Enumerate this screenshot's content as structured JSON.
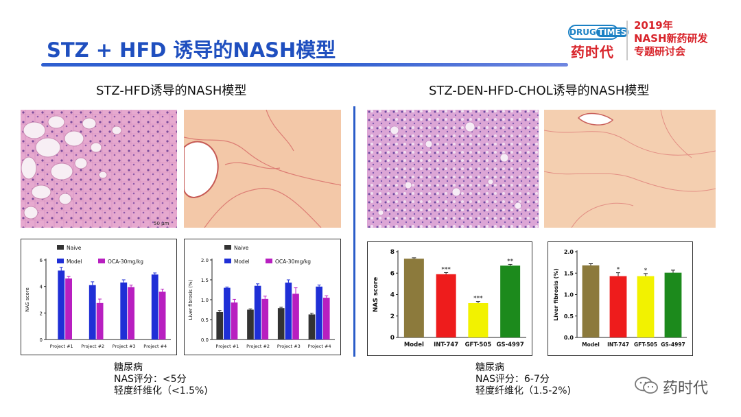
{
  "slide": {
    "title": "STZ + HFD 诱导的NASH模型"
  },
  "logo": {
    "badge_left": "DRUG",
    "badge_right": "TIMES",
    "cn": "药时代"
  },
  "conference": {
    "line1": "2019年",
    "line2": "NASH新药研发",
    "line3": "专题研讨会"
  },
  "left": {
    "title": "STZ-HFD诱导的NASH模型",
    "scale_bar": "50 μm",
    "summary": [
      "糖尿病",
      "NAS评分：<5分",
      "轻度纤维化（<1.5%)"
    ]
  },
  "right": {
    "title": "STZ-DEN-HFD-CHOL诱导的NASH模型",
    "summary": [
      "糖尿病",
      "NAS评分：6-7分",
      "轻度纤维化（1.5-2%)"
    ]
  },
  "watermark": {
    "text": "药时代",
    "icon": "wechat-icon"
  },
  "chart_data": [
    {
      "id": "left-nas",
      "type": "bar",
      "ylabel": "NAS score",
      "ylim": [
        0,
        6
      ],
      "yticks": [
        "0",
        "2",
        "4",
        "6"
      ],
      "categories": [
        "Project #1",
        "Project #2",
        "Project #3",
        "Project #4"
      ],
      "series": [
        {
          "name": "Naive",
          "color": "#333333",
          "values": [
            null,
            null,
            null,
            null
          ],
          "errors": [
            null,
            null,
            null,
            null
          ]
        },
        {
          "name": "Model",
          "color": "#1f2fd6",
          "values": [
            5.2,
            4.1,
            4.3,
            4.9
          ],
          "errors": [
            0.25,
            0.25,
            0.2,
            0.12
          ]
        },
        {
          "name": "OCA-30mg/kg",
          "color": "#b81fc0",
          "values": [
            4.6,
            2.75,
            3.95,
            3.6
          ],
          "errors": [
            0.15,
            0.3,
            0.15,
            0.2
          ]
        }
      ],
      "legend": "top"
    },
    {
      "id": "left-fibrosis",
      "type": "bar",
      "ylabel": "Liver fibrosis (%)",
      "ylim": [
        0,
        2.0
      ],
      "yticks": [
        "0.0",
        "0.5",
        "1.0",
        "1.5",
        "2.0"
      ],
      "categories": [
        "Project #1",
        "Project #2",
        "Project #3",
        "Project #4"
      ],
      "series": [
        {
          "name": "Naive",
          "color": "#333333",
          "values": [
            0.69,
            0.75,
            0.79,
            0.63
          ],
          "errors": [
            0.04,
            0.02,
            0.02,
            0.03
          ]
        },
        {
          "name": "Model",
          "color": "#1f2fd6",
          "values": [
            1.3,
            1.35,
            1.43,
            1.33
          ],
          "errors": [
            0.02,
            0.05,
            0.07,
            0.04
          ]
        },
        {
          "name": "OCA-30mg/kg",
          "color": "#b81fc0",
          "values": [
            0.93,
            1.02,
            1.15,
            1.05
          ],
          "errors": [
            0.08,
            0.07,
            0.15,
            0.05
          ]
        }
      ],
      "legend": "top"
    },
    {
      "id": "right-nas",
      "type": "bar",
      "ylabel": "NAS score",
      "ylim": [
        0,
        8
      ],
      "yticks": [
        "0",
        "2",
        "4",
        "6",
        "8"
      ],
      "categories": [
        "Model",
        "INT-747",
        "GFT-505",
        "GS-4997"
      ],
      "values": [
        7.35,
        5.9,
        3.2,
        6.7
      ],
      "errors": [
        0.08,
        0.15,
        0.15,
        0.12
      ],
      "colors": [
        "#8c7a3c",
        "#ee1c1c",
        "#f2f200",
        "#1c8a1c"
      ],
      "annotations": [
        "",
        "***",
        "***",
        "**"
      ],
      "legend": "none"
    },
    {
      "id": "right-fibrosis",
      "type": "bar",
      "ylabel": "Liver fibrosis (%)",
      "ylim": [
        0,
        2.0
      ],
      "yticks": [
        "0.0",
        "0.5",
        "1.0",
        "1.5",
        "2.0"
      ],
      "categories": [
        "Model",
        "INT-747",
        "GFT-505",
        "GS-4997"
      ],
      "values": [
        1.68,
        1.43,
        1.43,
        1.51
      ],
      "errors": [
        0.04,
        0.08,
        0.06,
        0.06
      ],
      "colors": [
        "#8c7a3c",
        "#ee1c1c",
        "#f2f200",
        "#1c8a1c"
      ],
      "annotations": [
        "",
        "*",
        "*",
        ""
      ],
      "legend": "none"
    }
  ]
}
